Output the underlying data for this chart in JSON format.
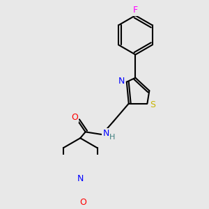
{
  "bg_color": "#e8e8e8",
  "atom_colors": {
    "C": "#000000",
    "N": "#0000ff",
    "O": "#ff0000",
    "S": "#c8b400",
    "F": "#ff00ff",
    "H": "#408080"
  },
  "bond_color": "#000000",
  "bond_width": 1.5,
  "font_size_atom": 8.5
}
